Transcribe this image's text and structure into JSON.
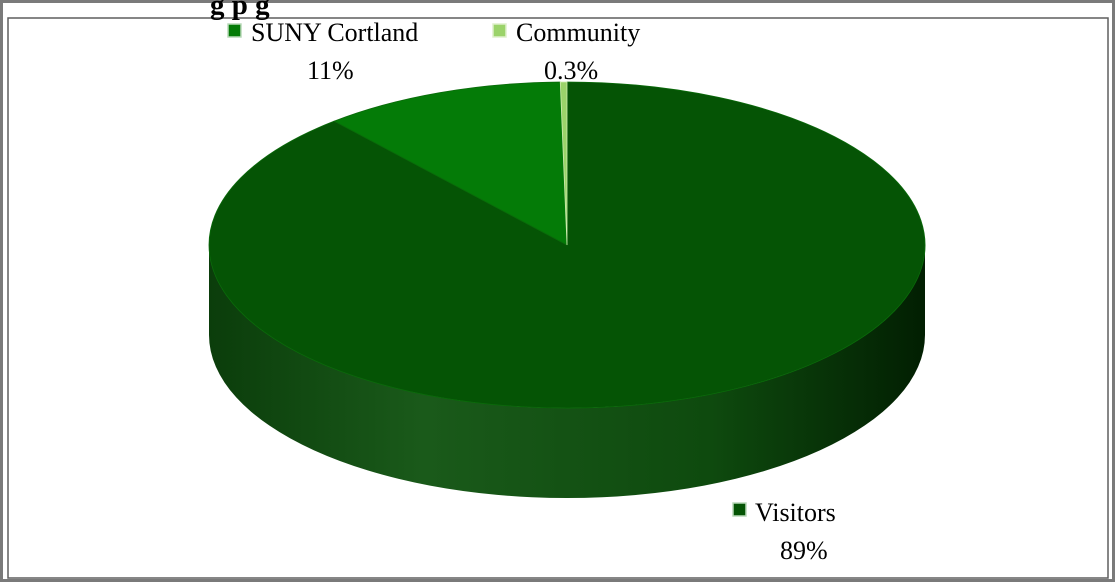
{
  "chart_data": {
    "type": "pie",
    "title": "g                                                    p   g",
    "slices": [
      {
        "name": "Visitors",
        "value": 89,
        "label": "89%",
        "color": "#055405"
      },
      {
        "name": "SUNY Cortland",
        "value": 11,
        "label": "11%",
        "color": "#047b07"
      },
      {
        "name": "Community",
        "value": 0.3,
        "label": "0.3%",
        "color": "#9bd36a"
      }
    ],
    "legend_placement": "labels-beside-slices",
    "three_d": true
  }
}
